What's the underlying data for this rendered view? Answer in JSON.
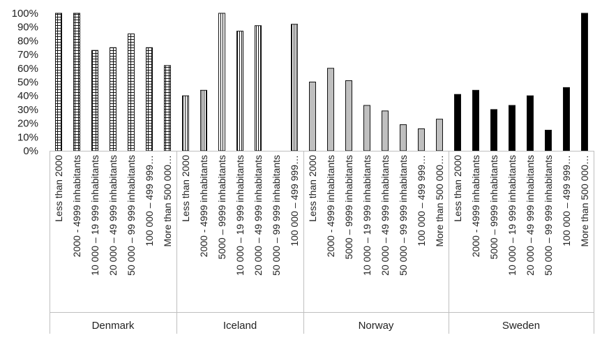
{
  "chart_data": {
    "type": "bar",
    "ylim": [
      0,
      100
    ],
    "y_ticks": [
      "0%",
      "10%",
      "20%",
      "30%",
      "40%",
      "50%",
      "60%",
      "70%",
      "80%",
      "90%",
      "100%"
    ],
    "grid": false,
    "legend": "none",
    "groups": [
      {
        "name": "Denmark",
        "style": "grid-pattern",
        "categories": [
          "Less than 2000",
          "2000 - 4999 inhabitants",
          "10 000 – 19 999 inhabitants",
          "20 000 – 49 999 inhabitants",
          "50 000 – 99 999 inhabitants",
          "100 000 – 499 999…",
          "More than 500 000…"
        ],
        "values": [
          100,
          100,
          73,
          75,
          85,
          75,
          62
        ]
      },
      {
        "name": "Iceland",
        "style": "vertical-stripes",
        "categories": [
          "Less than 2000",
          "2000 - 4999 inhabitants",
          "5000 – 9999 inhabitants",
          "10 000 – 19 999 inhabitants",
          "20 000 – 49 999 inhabitants",
          "50 000 – 99 999 inhabitants",
          "100 000 – 499 999…"
        ],
        "values": [
          40,
          44,
          100,
          87,
          91,
          0,
          92
        ]
      },
      {
        "name": "Norway",
        "style": "gray",
        "categories": [
          "Less than 2000",
          "2000 - 4999 inhabitants",
          "5000 – 9999 inhabitants",
          "10 000 – 19 999 inhabitants",
          "20 000 – 49 999 inhabitants",
          "50 000 – 99 999 inhabitants",
          "100 000 – 499 999…",
          "More than 500 000…"
        ],
        "values": [
          50,
          60,
          51,
          33,
          29,
          19,
          16,
          23
        ]
      },
      {
        "name": "Sweden",
        "style": "black",
        "categories": [
          "Less than 2000",
          "2000 - 4999 inhabitants",
          "5000 – 9999 inhabitants",
          "10 000 – 19 999 inhabitants",
          "20 000 – 49 999 inhabitants",
          "50 000 – 99 999 inhabitants",
          "100 000 – 499 999…",
          "More than 500 000…"
        ],
        "values": [
          41,
          44,
          30,
          33,
          40,
          15,
          46,
          100
        ]
      }
    ]
  },
  "colors": {
    "axis": "#bfbfbf",
    "text": "#222222",
    "bar_outline": "#111111",
    "gray_fill": "#bfbfbf",
    "black_fill": "#000000",
    "pattern_line": "#111111"
  }
}
